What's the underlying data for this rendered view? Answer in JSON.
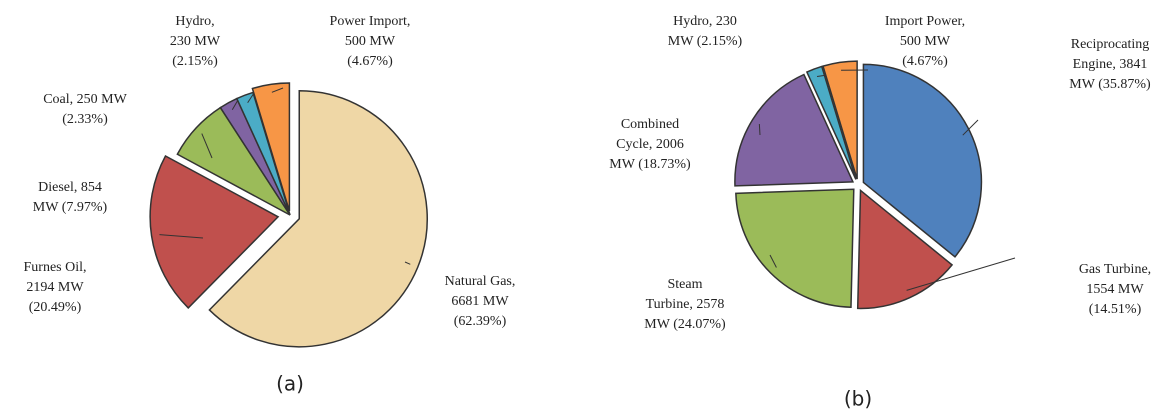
{
  "chart_data": [
    {
      "type": "pie",
      "caption": "(a)",
      "values": [
        6681,
        2194,
        854,
        250,
        230,
        500
      ],
      "colors": [
        "#efd7a6",
        "#c0504d",
        "#9bbb59",
        "#8064a2",
        "#4bacc6",
        "#f79646"
      ],
      "value_labels": [
        [
          "Natural Gas,",
          "6681 MW",
          "(62.39%)"
        ],
        [
          "Furnes Oil,",
          "2194 MW",
          "(20.49%)"
        ],
        [
          "Diesel, 854",
          "MW (7.97%)"
        ],
        [
          "Coal, 250 MW",
          "(2.33%)"
        ],
        [
          "Hydro,",
          "230 MW",
          "(2.15%)"
        ],
        [
          "Power Import,",
          "500 MW",
          "(4.67%)"
        ]
      ]
    },
    {
      "type": "pie",
      "caption": "(b)",
      "values": [
        3841,
        1554,
        2578,
        2006,
        230,
        500
      ],
      "colors": [
        "#4f81bd",
        "#c0504d",
        "#9bbb59",
        "#8064a2",
        "#4bacc6",
        "#f79646"
      ],
      "value_labels": [
        [
          "Reciprocating",
          "Engine, 3841",
          "MW (35.87%)"
        ],
        [
          "Gas Turbine,",
          "1554 MW",
          "(14.51%)"
        ],
        [
          "Steam",
          "Turbine, 2578",
          "MW (24.07%)"
        ],
        [
          "Combined",
          "Cycle, 2006",
          "MW (18.73%)"
        ],
        [
          "Hydro, 230",
          "MW (2.15%)"
        ],
        [
          "Import Power,",
          "500 MW",
          "(4.67%)"
        ]
      ]
    }
  ]
}
